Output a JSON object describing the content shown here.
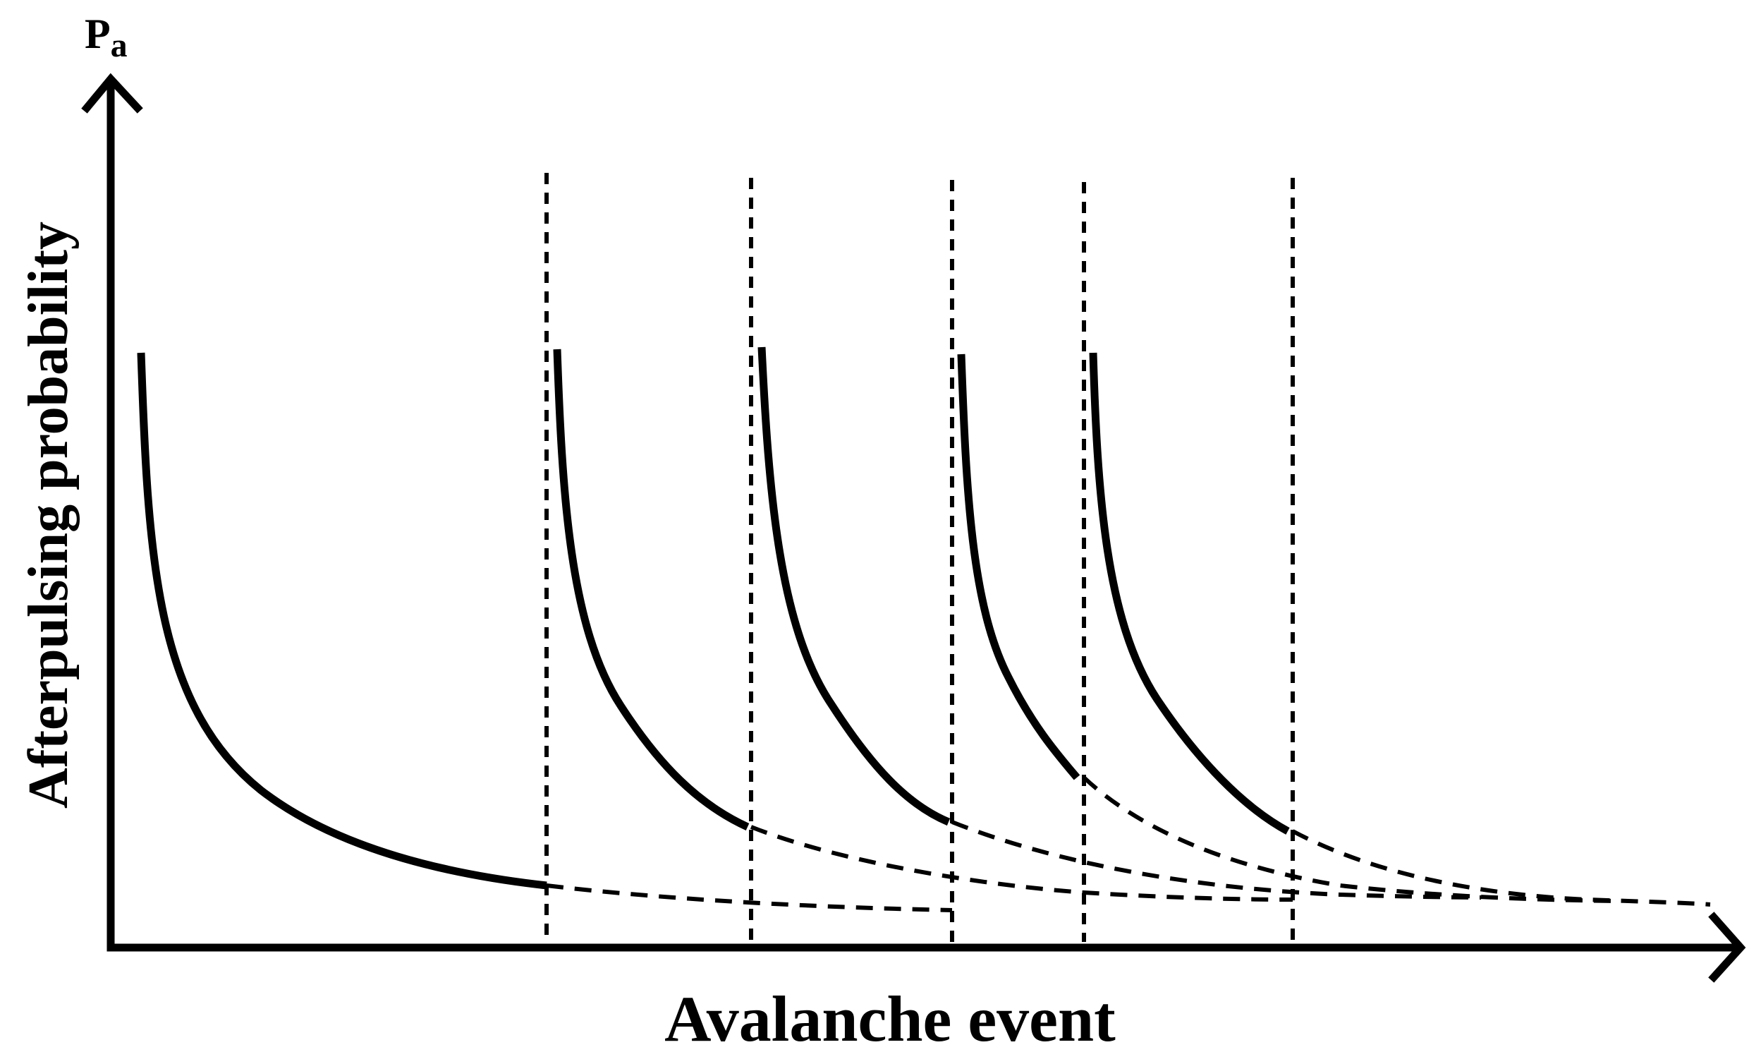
{
  "diagram": {
    "y_axis_symbol": "P",
    "y_axis_symbol_subscript": "a",
    "y_axis_label": "Afterpulsing probability",
    "x_axis_label": "Avalanche event",
    "avalanche_event_count": 6,
    "dashed_event_markers": 5,
    "curve_style": {
      "solid": "decaying afterpulsing probability until next avalanche",
      "dashed": "continuation of decay after next avalanche"
    },
    "colors": {
      "ink": "#000000",
      "background": "#ffffff"
    }
  }
}
